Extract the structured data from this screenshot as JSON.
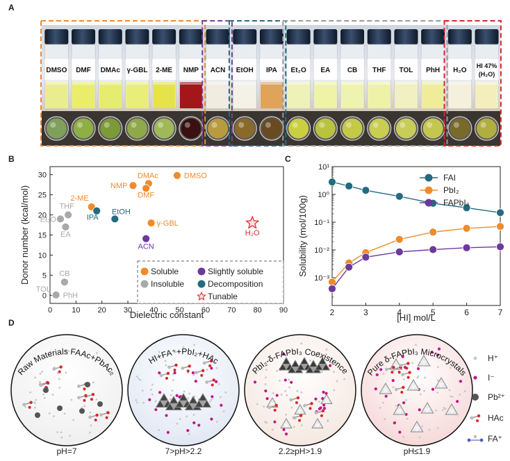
{
  "panels": {
    "a": "A",
    "b": "B",
    "c": "C",
    "d": "D"
  },
  "photo": {
    "groups": [
      {
        "color": "#e8893a",
        "vials": [
          "DMSO",
          "DMF",
          "DMAc",
          "γ-GBL",
          "2-ME",
          "NMP"
        ]
      },
      {
        "color": "#7a3f9a",
        "vials": [
          "ACN"
        ]
      },
      {
        "color": "#2b6a80",
        "vials": [
          "EtOH",
          "IPA"
        ]
      },
      {
        "color": "#9a9a9a",
        "vials": [
          "Et₂O",
          "EA",
          "CB",
          "THF",
          "TOL",
          "PhH"
        ]
      },
      {
        "color": "#d9262c",
        "vials": [
          "H₂O",
          "HI 47%|(H₂O)"
        ]
      }
    ],
    "liquid_colors": [
      "#e9ed8e",
      "#eaed6a",
      "#e6ec70",
      "#e9ee7a",
      "#e6e34a",
      "#a3161a",
      "#f0ede0",
      "#f4f1e6",
      "#e0a35a",
      "#eef1b8",
      "#eef3a8",
      "#eef3b0",
      "#eef2a8",
      "#f0f0c0",
      "#f0ec9a",
      "#f4f0dc",
      "#f4eebc"
    ],
    "dish_colors": [
      "#7fa05a",
      "#8fae45",
      "#7c9a38",
      "#8fa84a",
      "#a0b85a",
      "#3a1010",
      "#b89a40",
      "#8a6a2a",
      "#6a4a20",
      "#c9cf40",
      "#b9c340",
      "#c5c948",
      "#c9cd50",
      "#c7cc5a",
      "#c4c650",
      "#7a6a2a",
      "#b0ae40"
    ]
  },
  "chart_data": [
    {
      "type": "scatter",
      "xlabel": "Dielectric constant",
      "ylabel": "Donor number (kcal/mol)",
      "xlim": [
        0,
        90
      ],
      "ylim": [
        -2,
        32
      ],
      "xticks": [
        0,
        10,
        20,
        30,
        40,
        50,
        60,
        70,
        80,
        90
      ],
      "yticks": [
        0,
        5,
        10,
        15,
        20,
        25,
        30
      ],
      "points": [
        {
          "label": "DMSO",
          "x": 49,
          "y": 29.8,
          "category": "soluble"
        },
        {
          "label": "DMAc",
          "x": 38,
          "y": 27.8,
          "category": "soluble"
        },
        {
          "label": "DMF",
          "x": 37,
          "y": 26.6,
          "category": "soluble"
        },
        {
          "label": "NMP",
          "x": 32,
          "y": 27.3,
          "category": "soluble"
        },
        {
          "label": "γ-GBL",
          "x": 39,
          "y": 18,
          "category": "soluble"
        },
        {
          "label": "2-ME",
          "x": 16,
          "y": 22,
          "category": "soluble"
        },
        {
          "label": "IPA",
          "x": 18,
          "y": 21,
          "category": "decomposition"
        },
        {
          "label": "EtOH",
          "x": 25,
          "y": 19,
          "category": "decomposition"
        },
        {
          "label": "ACN",
          "x": 37,
          "y": 14.1,
          "category": "slightly soluble"
        },
        {
          "label": "THF",
          "x": 7,
          "y": 20,
          "category": "insoluble"
        },
        {
          "label": "Et₂O",
          "x": 4,
          "y": 19,
          "category": "insoluble"
        },
        {
          "label": "EA",
          "x": 6,
          "y": 17,
          "category": "insoluble"
        },
        {
          "label": "CB",
          "x": 5.6,
          "y": 3.3,
          "category": "insoluble"
        },
        {
          "label": "TOL",
          "x": 2.4,
          "y": 0.1,
          "category": "insoluble"
        },
        {
          "label": "PhH",
          "x": 2.3,
          "y": 0.1,
          "category": "insoluble"
        },
        {
          "label": "H₂O",
          "x": 78,
          "y": 18,
          "category": "tunable"
        }
      ],
      "legend": [
        {
          "label": "Soluble",
          "color": "#ef8b2c",
          "category": "soluble"
        },
        {
          "label": "Slightly soluble",
          "color": "#6b3a9a",
          "category": "slightly soluble"
        },
        {
          "label": "Insoluble",
          "color": "#a9a9a9",
          "category": "insoluble"
        },
        {
          "label": "Decomposition",
          "color": "#236b80",
          "category": "decomposition"
        },
        {
          "label": "Tunable",
          "color": "#d9262c",
          "category": "tunable"
        }
      ],
      "legend_position": "bottom-right"
    },
    {
      "type": "line",
      "xlabel": "[HI] mol/L",
      "ylabel": "Solubility (mol/100g)",
      "xlim": [
        2,
        7
      ],
      "ylim_log": [
        -4,
        1
      ],
      "yscale": "log",
      "x": [
        2,
        2.5,
        3,
        4,
        5,
        6,
        7
      ],
      "series": [
        {
          "name": "FAI",
          "color": "#236b80",
          "values": [
            2.8,
            2.0,
            1.4,
            0.85,
            0.48,
            0.33,
            0.22
          ]
        },
        {
          "name": "PbI₂",
          "color": "#ef8b2c",
          "values": [
            0.0007,
            0.0034,
            0.008,
            0.024,
            0.044,
            0.06,
            0.07
          ]
        },
        {
          "name": "FAPbI₃",
          "color": "#6b3a9a",
          "values": [
            0.0004,
            0.0024,
            0.0055,
            0.0085,
            0.0103,
            0.012,
            0.013
          ]
        }
      ],
      "xticks": [
        2,
        3,
        4,
        5,
        6,
        7
      ],
      "ytick_labels": [
        "10⁻³",
        "10⁻²",
        "10⁻¹",
        "10⁰",
        "10¹"
      ],
      "legend_position": "top-right"
    }
  ],
  "schematic": {
    "circles": [
      {
        "title": "Raw Materials    FAAc+PbAc₂",
        "ph": "pH=7",
        "bg": "#eeeeee"
      },
      {
        "title": "HI+FA⁺+PbI₂+HAc",
        "ph": "7>pH>2.2",
        "bg": "#dfe6f3"
      },
      {
        "title": "PbI₂-δ-FAPbI₃ Coexistence",
        "ph": "2.2≥pH>1.9",
        "bg": "#f5e6df"
      },
      {
        "title": "Pure δ-FAPbI₃ Microcrystals",
        "ph": "pH≤1.9",
        "bg": "#f6d6d6"
      }
    ],
    "legend": [
      {
        "label": "H⁺"
      },
      {
        "label": "I⁻"
      },
      {
        "label": "Pb²⁺"
      },
      {
        "label": "HAc"
      },
      {
        "label": "FA⁺"
      }
    ]
  }
}
